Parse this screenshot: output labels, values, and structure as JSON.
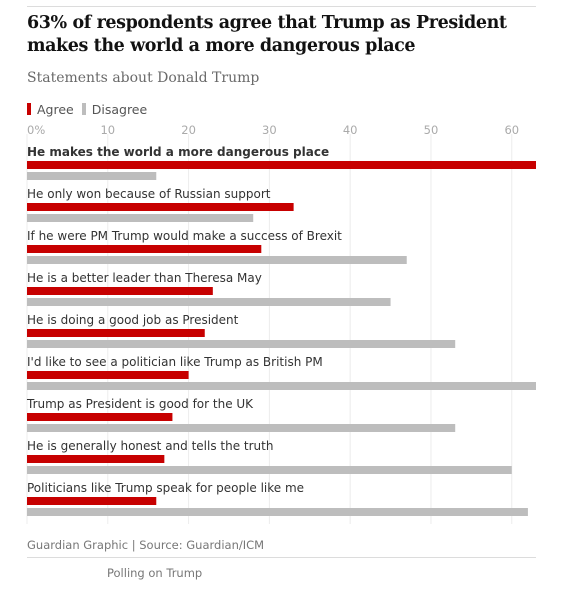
{
  "header": {
    "title": "63% of respondents agree that Trump as President makes the world a more dangerous place",
    "subtitle": "Statements about Donald Trump"
  },
  "footer": {
    "credit": "Guardian Graphic | Source: Guardian/ICM",
    "related_link": "Polling on Trump"
  },
  "colors": {
    "agree": "#c70000",
    "disagree": "#bdbdbd"
  },
  "chart_data": {
    "type": "bar",
    "orientation": "horizontal",
    "title": "63% of respondents agree that Trump as President makes the world a more dangerous place",
    "subtitle": "Statements about Donald Trump",
    "categories": [
      "He makes the world a more dangerous place",
      "He only won because of Russian support",
      "If he were PM Trump would make a success of Brexit",
      "He is a better leader than Theresa May",
      "He is doing a good job as President",
      "I'd like to see a politician like Trump as British PM",
      "Trump as President is good for the UK",
      "He is generally honest and tells the truth",
      "Politicians like Trump speak for people like me"
    ],
    "highlight_category_index": 0,
    "series": [
      {
        "name": "Agree",
        "color": "#c70000",
        "values": [
          63,
          33,
          29,
          23,
          22,
          20,
          18,
          17,
          16
        ]
      },
      {
        "name": "Disagree",
        "color": "#bdbdbd",
        "values": [
          16,
          28,
          47,
          45,
          53,
          63,
          53,
          60,
          62
        ]
      }
    ],
    "xlim": [
      0,
      63
    ],
    "xticks": [
      0,
      10,
      20,
      30,
      40,
      50,
      60
    ],
    "xtick_labels": [
      "0%",
      "10",
      "20",
      "30",
      "40",
      "50",
      "60"
    ],
    "grid": true,
    "legend_position": "top-left",
    "source": "Guardian Graphic | Source: Guardian/ICM"
  }
}
